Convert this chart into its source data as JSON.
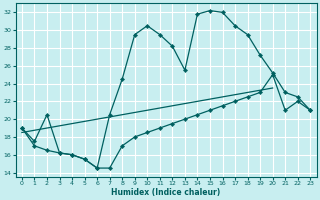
{
  "xlabel": "Humidex (Indice chaleur)",
  "xlim": [
    -0.5,
    23.5
  ],
  "ylim": [
    13.5,
    33
  ],
  "yticks": [
    14,
    16,
    18,
    20,
    22,
    24,
    26,
    28,
    30,
    32
  ],
  "xticks": [
    0,
    1,
    2,
    3,
    4,
    5,
    6,
    7,
    8,
    9,
    10,
    11,
    12,
    13,
    14,
    15,
    16,
    17,
    18,
    19,
    20,
    21,
    22,
    23
  ],
  "bg_color": "#c8eef0",
  "grid_color": "#ffffff",
  "line_color": "#006060",
  "curve_x": [
    0,
    1,
    2,
    3,
    4,
    5,
    6,
    7,
    8,
    9,
    10,
    11,
    12,
    13,
    14,
    15,
    16,
    17,
    18,
    19,
    20,
    21,
    22,
    23
  ],
  "curve_y": [
    19.0,
    17.5,
    20.5,
    16.2,
    16.0,
    15.5,
    14.5,
    20.5,
    24.5,
    29.5,
    30.5,
    29.5,
    28.2,
    25.5,
    31.8,
    32.2,
    32.0,
    30.5,
    29.5,
    27.2,
    25.2,
    23.0,
    22.5,
    21.0
  ],
  "lower_x": [
    0,
    1,
    2,
    3,
    4,
    5,
    6,
    7,
    8,
    9,
    10,
    11,
    12,
    13,
    14,
    15,
    16,
    17,
    18,
    19,
    20,
    21,
    22,
    23
  ],
  "lower_y": [
    19.0,
    17.0,
    16.5,
    16.2,
    16.0,
    15.5,
    14.5,
    14.5,
    17.0,
    18.0,
    18.5,
    19.0,
    19.5,
    20.0,
    20.5,
    21.0,
    21.5,
    22.0,
    22.5,
    23.0,
    25.0,
    21.0,
    22.0,
    21.0
  ]
}
